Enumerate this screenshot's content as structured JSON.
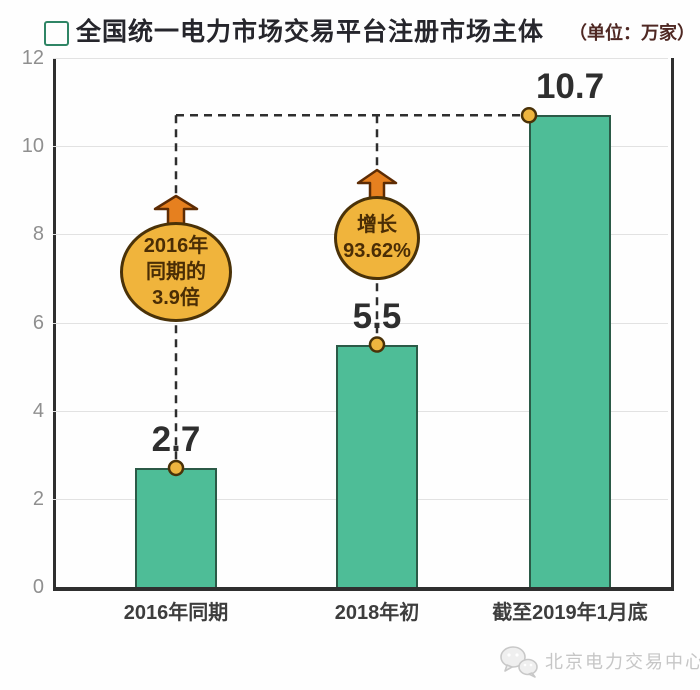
{
  "header": {
    "title": "全国统一电力市场交易平台注册市场主体",
    "unit_label": "（单位：万家）"
  },
  "chart_data": {
    "type": "bar",
    "title": "全国统一电力市场交易平台注册市场主体",
    "unit": "万家",
    "categories": [
      "2016年同期",
      "2018年初",
      "截至2019年1月底"
    ],
    "values": [
      2.7,
      5.5,
      10.7
    ],
    "value_labels": [
      "2.7",
      "5.5",
      "10.7"
    ],
    "ylim": [
      0,
      12
    ],
    "yticks": [
      0,
      2,
      4,
      6,
      8,
      10,
      12
    ],
    "grid": true,
    "legend_position": "top-left",
    "colors": {
      "bar_fill": "#4ebd97",
      "bar_border": "#2b5a47",
      "balloon_fill": "#f0b43c",
      "balloon_border": "#4a3208",
      "balloon_text": "#4a2d05",
      "arrow_fill": "#e6801f",
      "arrow_border": "#5e2c04",
      "dot_fill": "#eeb53f",
      "dashed_line": "#2e2e2e",
      "axis": "#2f2f2f",
      "gridline": "#e2e2e2"
    },
    "annotations": [
      {
        "bar_index": 0,
        "lines": [
          "2016年",
          "同期的",
          "3.9倍"
        ]
      },
      {
        "bar_index": 1,
        "lines": [
          "增长",
          "93.62%"
        ]
      }
    ],
    "connector_note": "dashed lines link tops of bars 1 and 2 to top-left corner of bar 3"
  },
  "footer": {
    "source": "北京电力交易中心",
    "icon": "wechat-icon"
  }
}
